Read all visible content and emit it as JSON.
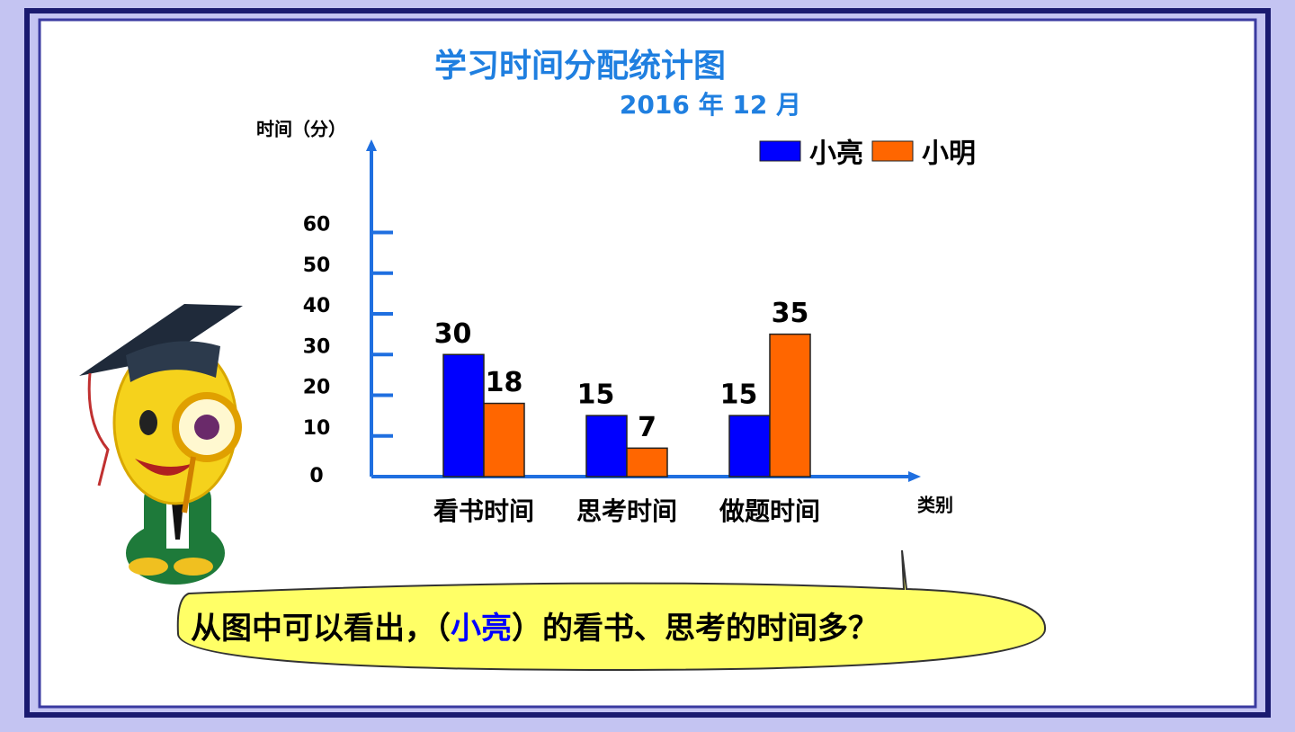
{
  "chart_data": {
    "type": "bar",
    "title": "学习时间分配统计图",
    "subtitle": "2016 年 12 月",
    "y_label": "时间（分）",
    "x_label": "类别",
    "categories": [
      "看书时间",
      "思考时间",
      "做题时间"
    ],
    "series": [
      {
        "name": "小亮",
        "color": "#0000ff",
        "values": [
          30,
          15,
          15
        ]
      },
      {
        "name": "小明",
        "color": "#ff6600",
        "values": [
          18,
          7,
          35
        ]
      }
    ],
    "ylim": [
      0,
      80
    ],
    "yticks": [
      0,
      10,
      20,
      30,
      40,
      50,
      60
    ],
    "axis_color": "#1f6fe0"
  },
  "callout": {
    "before": "从图中可以看出，（",
    "answer": "小亮",
    "after": "）的看书、思考的时间多？"
  }
}
